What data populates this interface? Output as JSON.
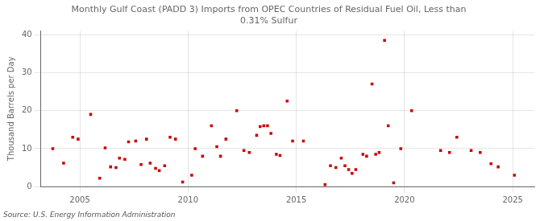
{
  "chart_data": {
    "type": "scatter",
    "title": "Monthly Gulf Coast (PADD 3) Imports from OPEC Countries of Residual Fuel Oil, Less than\n0.31% Sulfur",
    "ylabel": "Thousand Barrels per Day",
    "annotations": [
      "Source: U.S. Energy Information Administration"
    ],
    "color": "#cc0000",
    "marker": "square",
    "grid": true,
    "xlim": [
      2003.2,
      2026.0
    ],
    "ylim": [
      0,
      41
    ],
    "xticks": [
      2005,
      2010,
      2015,
      2020,
      2025
    ],
    "yticks": [
      0,
      10,
      20,
      30,
      40
    ],
    "x": [
      2003.75,
      2004.25,
      2004.67,
      2004.92,
      2005.5,
      2005.92,
      2006.17,
      2006.42,
      2006.67,
      2006.83,
      2007.08,
      2007.25,
      2007.58,
      2007.83,
      2008.08,
      2008.25,
      2008.5,
      2008.67,
      2008.92,
      2009.17,
      2009.42,
      2009.75,
      2010.17,
      2010.33,
      2010.67,
      2011.08,
      2011.33,
      2011.5,
      2011.75,
      2012.25,
      2012.58,
      2012.83,
      2013.17,
      2013.33,
      2013.5,
      2013.67,
      2013.83,
      2014.08,
      2014.25,
      2014.58,
      2014.83,
      2015.33,
      2016.33,
      2016.58,
      2016.83,
      2017.08,
      2017.25,
      2017.42,
      2017.58,
      2017.75,
      2018.08,
      2018.25,
      2018.5,
      2018.67,
      2018.83,
      2019.08,
      2019.25,
      2019.5,
      2019.83,
      2020.33,
      2021.67,
      2022.08,
      2022.42,
      2023.08,
      2023.5,
      2024.0,
      2024.33,
      2025.08
    ],
    "values": [
      10.0,
      6.2,
      13.0,
      12.5,
      19.0,
      2.2,
      10.2,
      5.2,
      5.0,
      7.5,
      7.2,
      11.8,
      12.0,
      5.8,
      12.5,
      6.2,
      4.8,
      4.2,
      5.5,
      13.0,
      12.5,
      1.2,
      3.0,
      10.0,
      8.0,
      16.0,
      10.5,
      8.0,
      12.5,
      20.0,
      9.5,
      9.0,
      13.5,
      15.8,
      16.0,
      16.0,
      14.0,
      8.5,
      8.2,
      22.5,
      12.0,
      12.0,
      0.5,
      5.5,
      5.0,
      7.5,
      5.5,
      4.5,
      3.5,
      4.5,
      8.5,
      8.0,
      27.0,
      8.5,
      9.0,
      38.5,
      16.0,
      1.0,
      10.0,
      20.0,
      9.5,
      9.0,
      13.0,
      9.5,
      9.0,
      6.0,
      5.2,
      3.0
    ]
  }
}
